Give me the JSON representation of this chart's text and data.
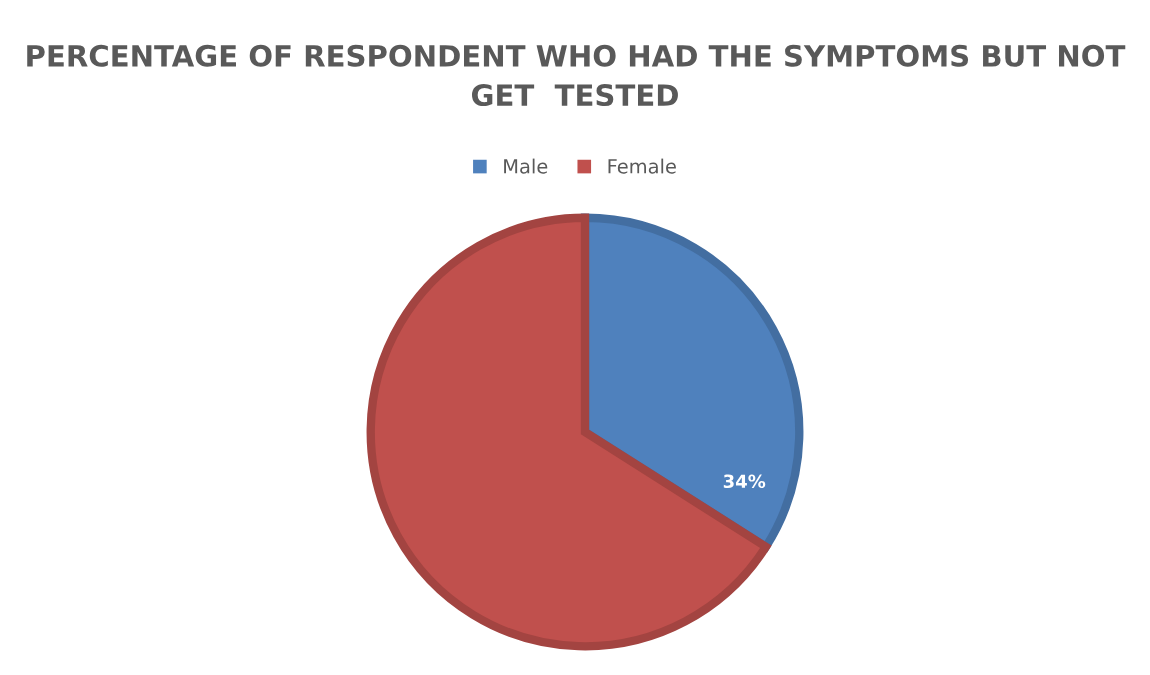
{
  "chart_data": {
    "type": "pie",
    "title": "PERCENTAGE OF RESPONDENT WHO HAD THE SYMPTOMS BUT NOT GET  TESTED",
    "categories": [
      "Male",
      "Female"
    ],
    "values": [
      34,
      66
    ],
    "colors": [
      "#4f81bd",
      "#c0504d"
    ],
    "value_labels": [
      "34%",
      null
    ],
    "legend": "top"
  }
}
